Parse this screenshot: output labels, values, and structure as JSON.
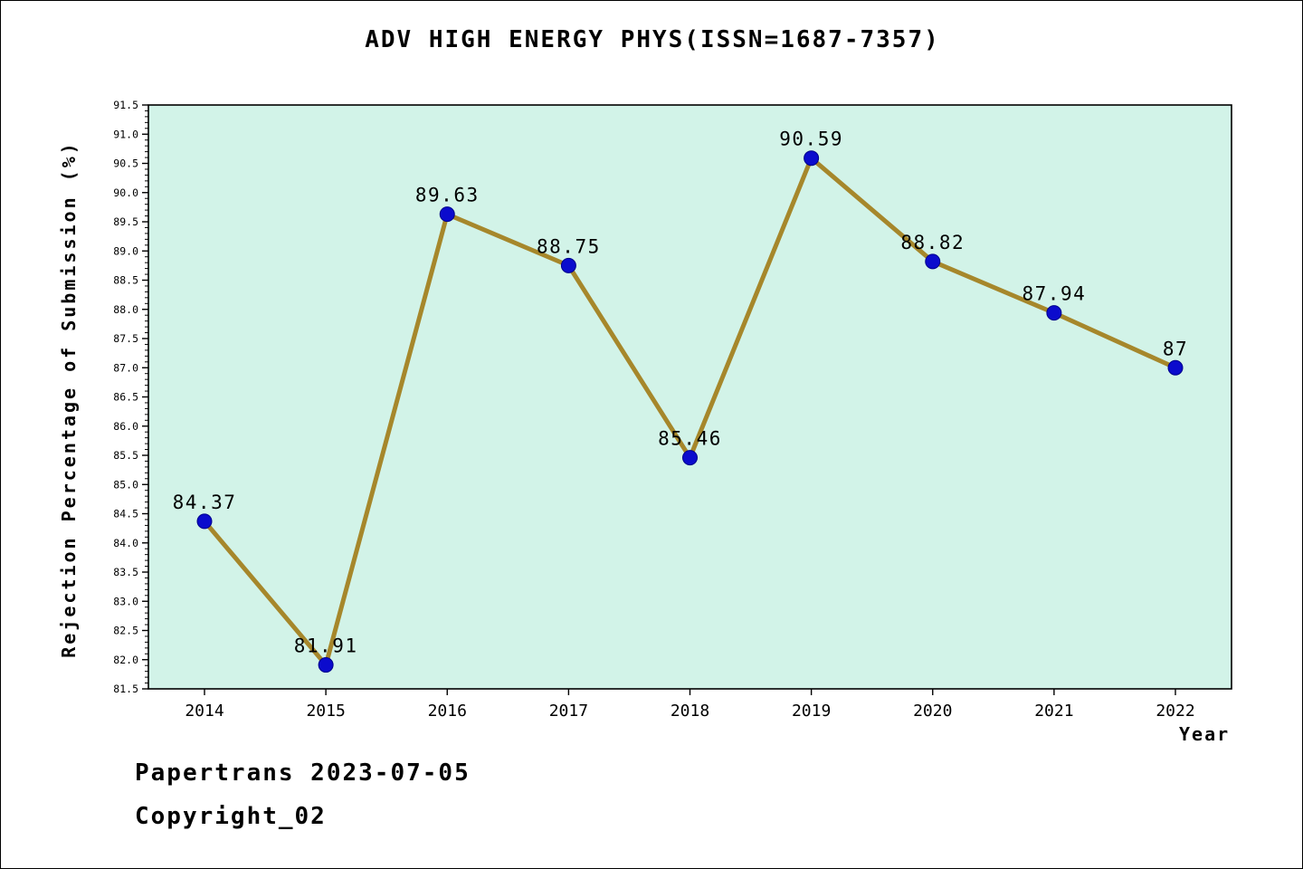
{
  "title": "ADV HIGH ENERGY PHYS(ISSN=1687-7357)",
  "footer": {
    "line1": "Papertrans 2023-07-05",
    "line2": "Copyright_02"
  },
  "chart_data": {
    "type": "line",
    "categories": [
      "2014",
      "2015",
      "2016",
      "2017",
      "2018",
      "2019",
      "2020",
      "2021",
      "2022"
    ],
    "values": [
      84.37,
      81.91,
      89.63,
      88.75,
      85.46,
      90.59,
      88.82,
      87.94,
      87
    ],
    "point_labels": [
      "84.37",
      "81.91",
      "89.63",
      "88.75",
      "85.46",
      "90.59",
      "88.82",
      "87.94",
      "87"
    ],
    "title": "ADV HIGH ENERGY PHYS(ISSN=1687-7357)",
    "xlabel": "Year",
    "ylabel": "Rejection Percentage of Submission (%)",
    "ylim": [
      81.5,
      91.5
    ],
    "ytick_step": 0.5,
    "ytick_minor_step": 0.1,
    "grid": false,
    "legend": "none",
    "line_color": "#a6872b",
    "marker_color": "#0b0bcd",
    "marker_edge_color": "#00008b",
    "plot_bg_color": "#d2f3e8",
    "axis_color": "#000000"
  }
}
